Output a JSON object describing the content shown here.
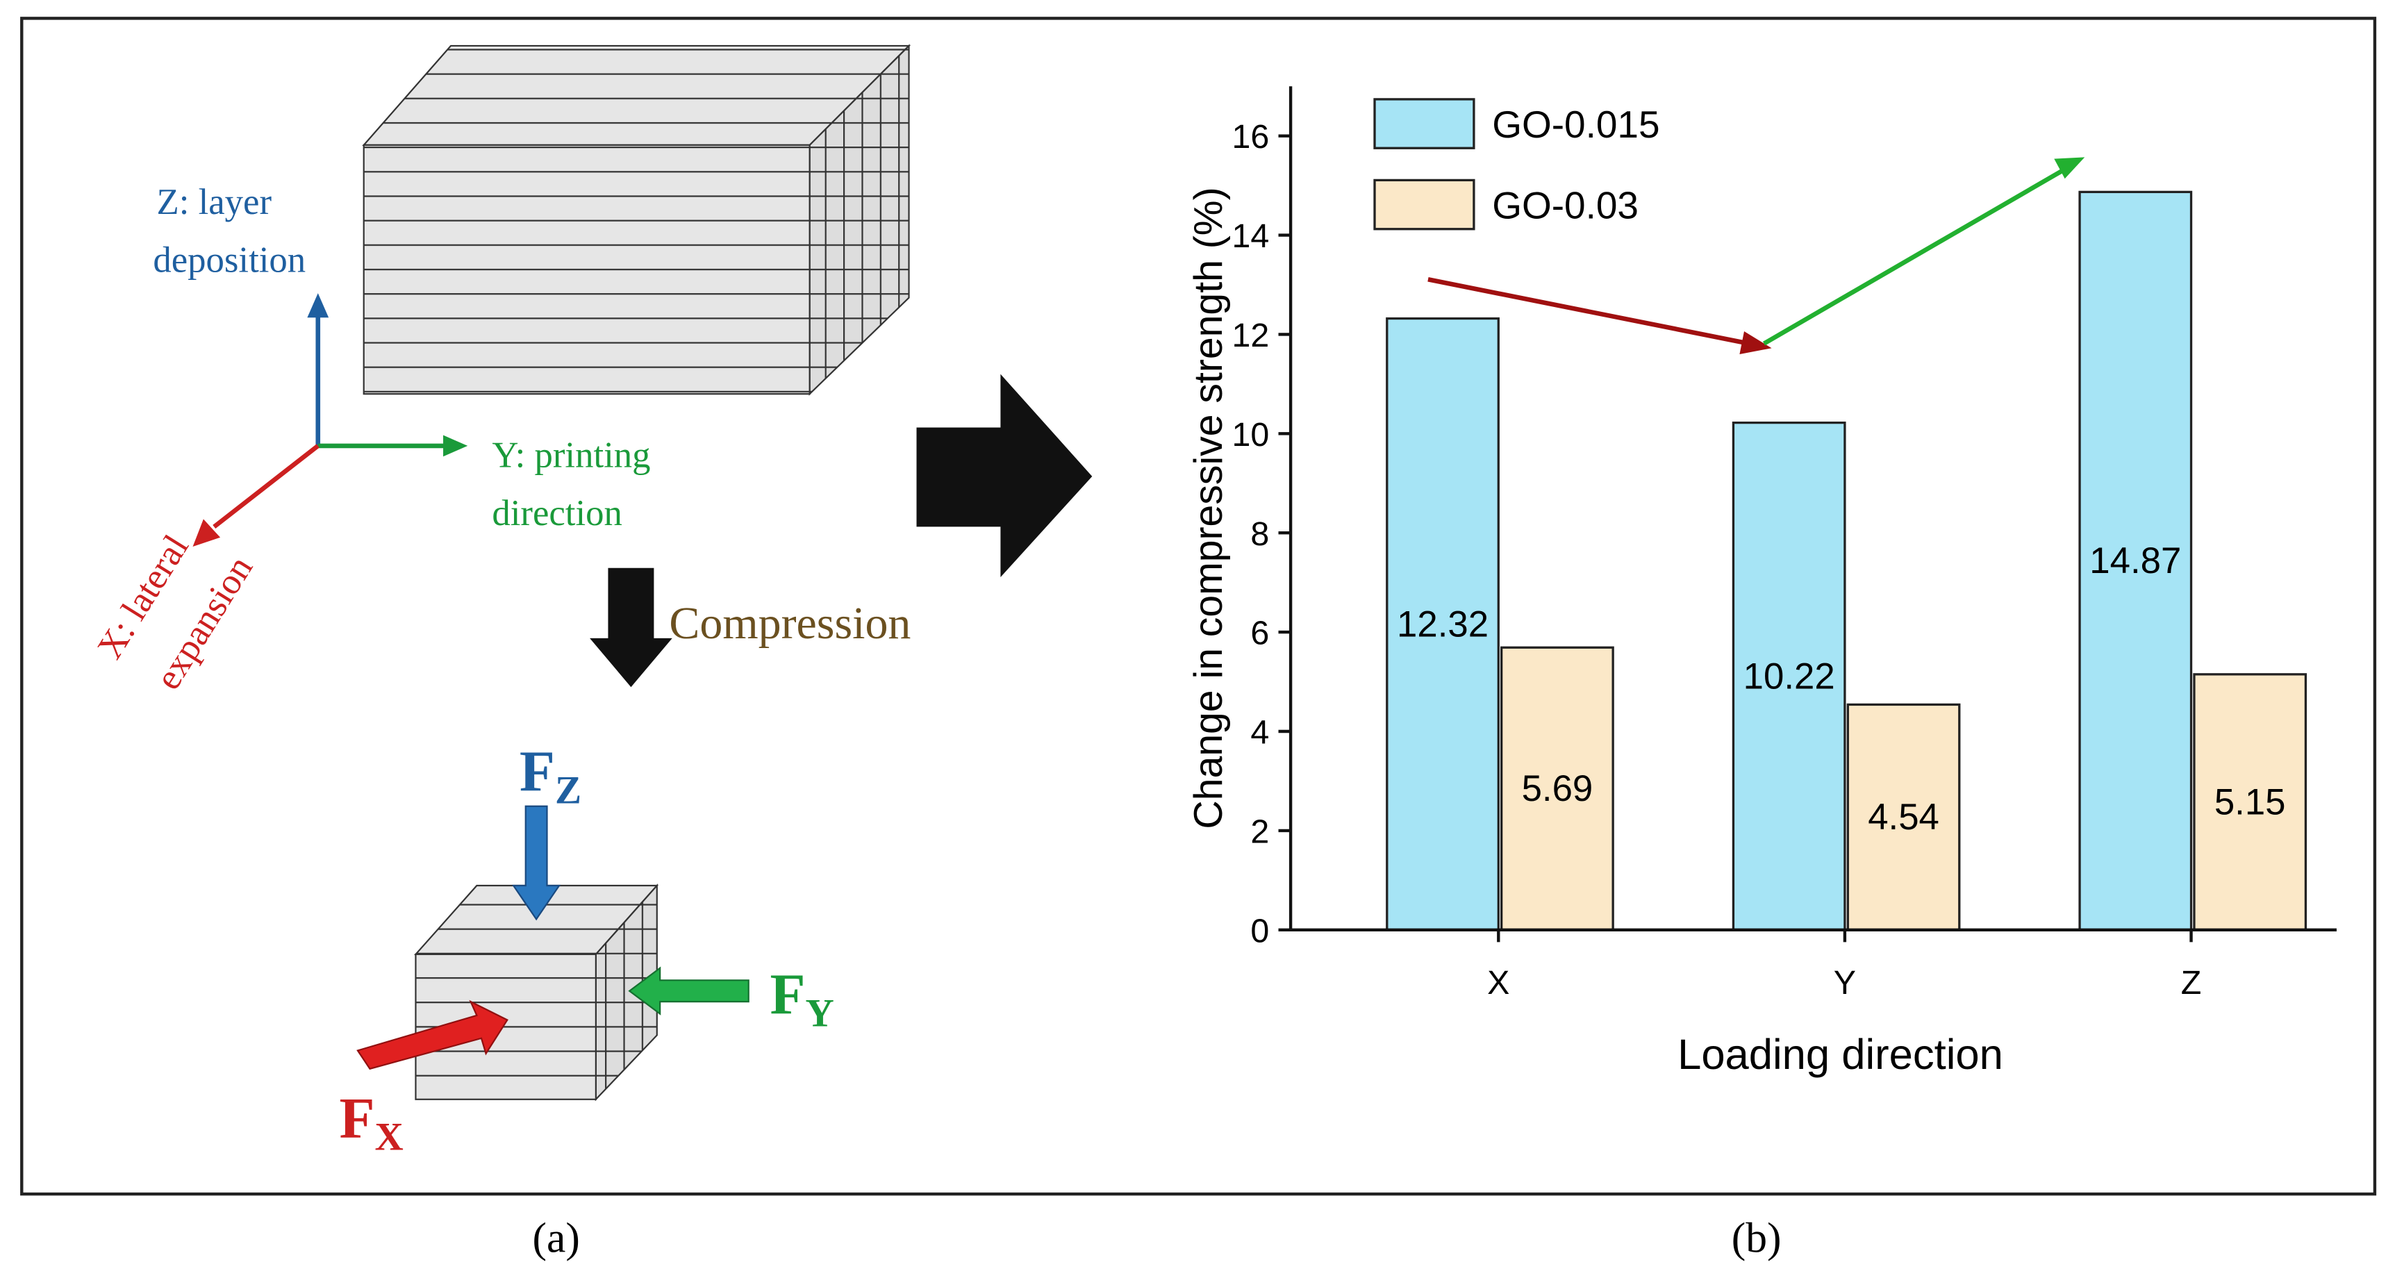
{
  "diagram": {
    "z_axis": [
      "Z: layer",
      "deposition"
    ],
    "y_axis": [
      "Y: printing",
      "direction"
    ],
    "x_axis": [
      "X: lateral",
      "expansion"
    ],
    "compression": "Compression",
    "forces": [
      {
        "symbol": "F",
        "subscript": "Z"
      },
      {
        "symbol": "F",
        "subscript": "Y"
      },
      {
        "symbol": "F",
        "subscript": "X"
      }
    ],
    "caption_a": "(a)",
    "caption_b": "(b)"
  },
  "chart_data": {
    "type": "bar",
    "categories": [
      "X",
      "Y",
      "Z"
    ],
    "series": [
      {
        "name": "GO-0.015",
        "color": "#a6e4f5",
        "values": [
          12.32,
          10.22,
          14.87
        ]
      },
      {
        "name": "GO-0.03",
        "color": "#fbe8c8",
        "values": [
          5.69,
          4.54,
          5.15
        ]
      }
    ],
    "ylim": [
      0,
      17
    ],
    "yticks": [
      0,
      2,
      4,
      6,
      8,
      10,
      12,
      14,
      16
    ],
    "y_label": "Change in compressive strength (%)",
    "x_label": "Loading direction",
    "legend": "upper left"
  }
}
